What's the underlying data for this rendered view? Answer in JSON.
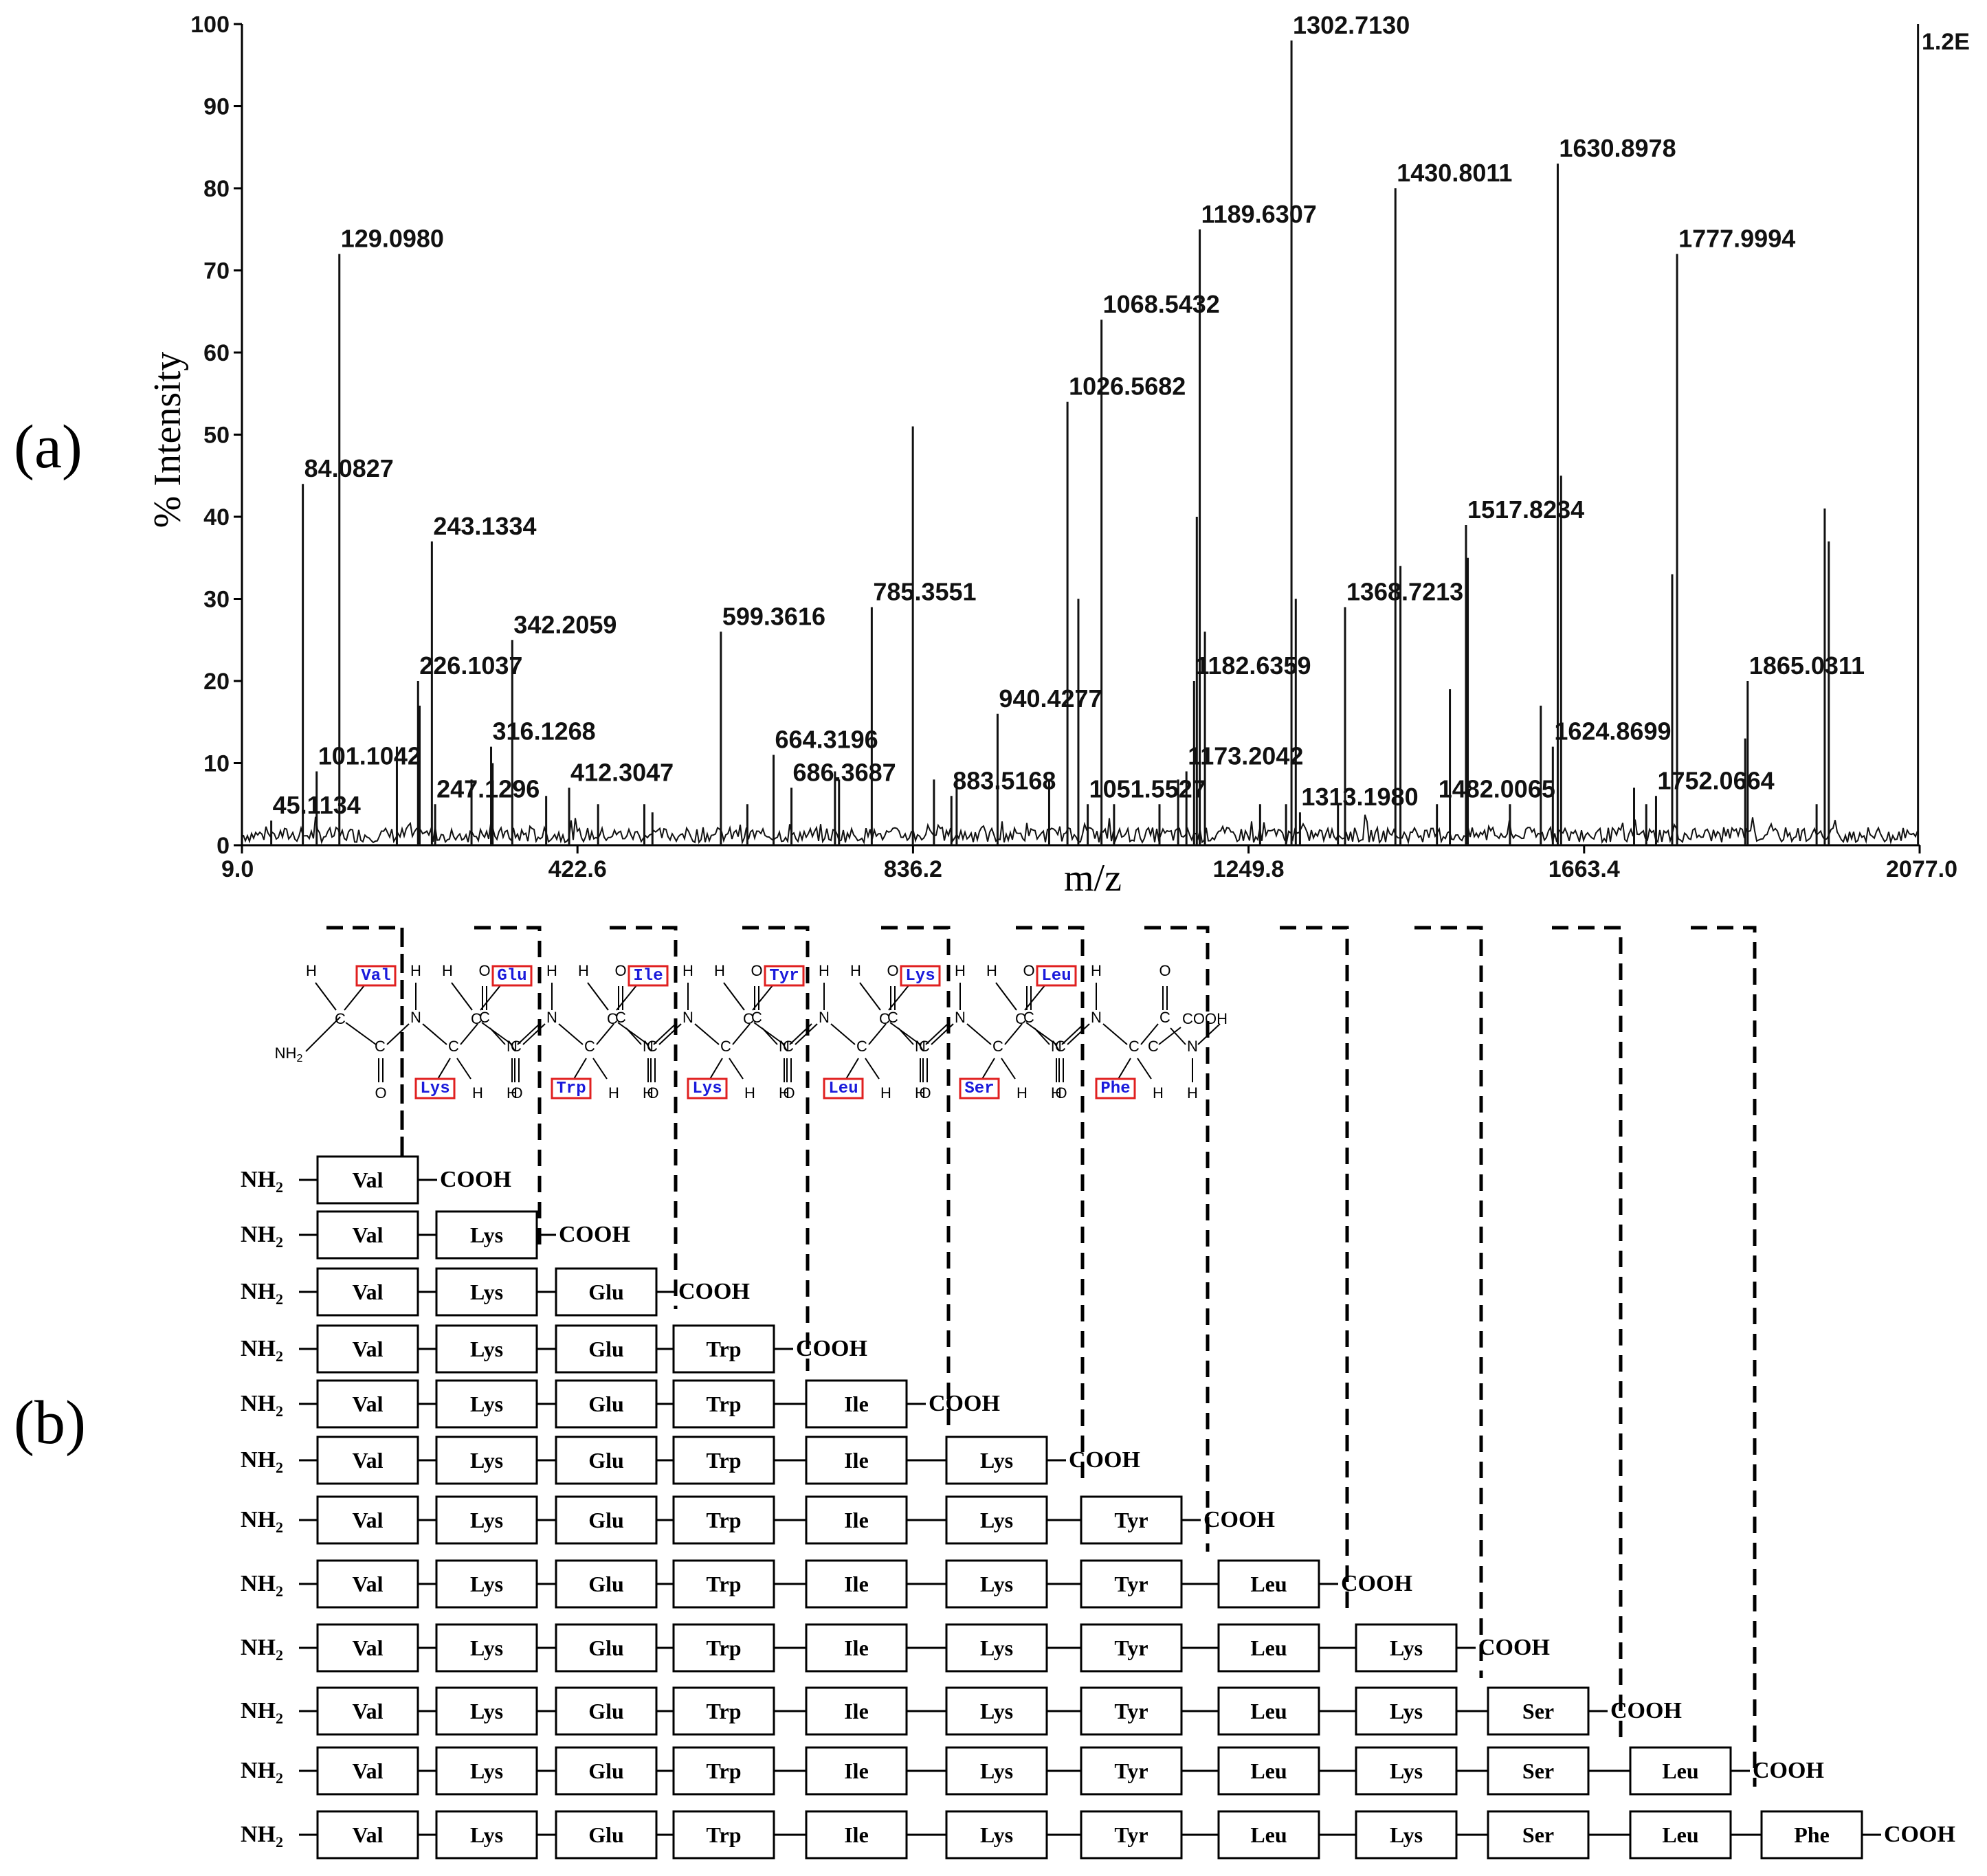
{
  "panels": {
    "a": "(a)",
    "b": "(b)"
  },
  "chart_data": {
    "type": "bar",
    "title": "",
    "xlabel": "m/z",
    "ylabel": "% Intensity",
    "xlim": [
      9.0,
      2077.0
    ],
    "ylim": [
      0,
      100
    ],
    "x_ticks": [
      "9.0",
      "422.6",
      "836.2",
      "1249.8",
      "1663.4",
      "2077.0"
    ],
    "y_ticks": [
      "0",
      "10",
      "20",
      "30",
      "40",
      "50",
      "60",
      "70",
      "80",
      "90",
      "100"
    ],
    "corner_label": "1.2E",
    "peaks_labeled": [
      {
        "mz": 45.1134,
        "label": "45.1134",
        "y": 3
      },
      {
        "mz": 84.0827,
        "label": "84.0827",
        "y": 44
      },
      {
        "mz": 101.1042,
        "label": "101.1042",
        "y": 9
      },
      {
        "mz": 129.098,
        "label": "129.0980",
        "y": 72
      },
      {
        "mz": 226.1037,
        "label": "226.1037",
        "y": 20
      },
      {
        "mz": 243.1334,
        "label": "243.1334",
        "y": 37
      },
      {
        "mz": 247.1296,
        "label": "247.1296",
        "y": 5
      },
      {
        "mz": 316.1268,
        "label": "316.1268",
        "y": 12
      },
      {
        "mz": 342.2059,
        "label": "342.2059",
        "y": 25
      },
      {
        "mz": 412.3047,
        "label": "412.3047",
        "y": 7
      },
      {
        "mz": 599.3616,
        "label": "599.3616",
        "y": 26
      },
      {
        "mz": 664.3196,
        "label": "664.3196",
        "y": 11
      },
      {
        "mz": 686.3687,
        "label": "686.3687",
        "y": 7
      },
      {
        "mz": 785.3551,
        "label": "785.3551",
        "y": 29
      },
      {
        "mz": 883.5168,
        "label": "883.5168",
        "y": 6
      },
      {
        "mz": 940.4277,
        "label": "940.4277",
        "y": 16
      },
      {
        "mz": 1026.5682,
        "label": "1026.5682",
        "y": 54
      },
      {
        "mz": 1051.5527,
        "label": "1051.5527",
        "y": 5
      },
      {
        "mz": 1068.5432,
        "label": "1068.5432",
        "y": 64
      },
      {
        "mz": 1173.2042,
        "label": "1173.2042",
        "y": 9
      },
      {
        "mz": 1182.6359,
        "label": "1182.6359",
        "y": 20
      },
      {
        "mz": 1189.6307,
        "label": "1189.6307",
        "y": 75
      },
      {
        "mz": 1302.713,
        "label": "1302.7130",
        "y": 98
      },
      {
        "mz": 1313.198,
        "label": "1313.1980",
        "y": 4
      },
      {
        "mz": 1368.7213,
        "label": "1368.7213",
        "y": 29
      },
      {
        "mz": 1430.8011,
        "label": "1430.8011",
        "y": 80
      },
      {
        "mz": 1482.0065,
        "label": "1482.0065",
        "y": 5
      },
      {
        "mz": 1517.8234,
        "label": "1517.8234",
        "y": 39
      },
      {
        "mz": 1624.8699,
        "label": "1624.8699",
        "y": 12
      },
      {
        "mz": 1630.8978,
        "label": "1630.8978",
        "y": 83
      },
      {
        "mz": 1752.0664,
        "label": "1752.0664",
        "y": 6
      },
      {
        "mz": 1777.9994,
        "label": "1777.9994",
        "y": 72
      },
      {
        "mz": 1865.0311,
        "label": "1865.0311",
        "y": 20
      }
    ],
    "peaks_other": [
      {
        "mz": 200,
        "y": 12
      },
      {
        "mz": 228,
        "y": 17
      },
      {
        "mz": 292,
        "y": 8
      },
      {
        "mz": 318,
        "y": 10
      },
      {
        "mz": 384,
        "y": 6
      },
      {
        "mz": 448,
        "y": 5
      },
      {
        "mz": 505,
        "y": 5
      },
      {
        "mz": 515,
        "y": 4
      },
      {
        "mz": 632,
        "y": 5
      },
      {
        "mz": 740,
        "y": 9
      },
      {
        "mz": 745,
        "y": 8
      },
      {
        "mz": 836,
        "y": 51
      },
      {
        "mz": 862,
        "y": 8
      },
      {
        "mz": 890,
        "y": 8
      },
      {
        "mz": 1004,
        "y": 8
      },
      {
        "mz": 1040,
        "y": 30
      },
      {
        "mz": 1084,
        "y": 5
      },
      {
        "mz": 1140,
        "y": 5
      },
      {
        "mz": 1163,
        "y": 8
      },
      {
        "mz": 1186,
        "y": 40
      },
      {
        "mz": 1196,
        "y": 26
      },
      {
        "mz": 1264,
        "y": 5
      },
      {
        "mz": 1296,
        "y": 5
      },
      {
        "mz": 1308,
        "y": 30
      },
      {
        "mz": 1360,
        "y": 5
      },
      {
        "mz": 1437,
        "y": 34
      },
      {
        "mz": 1498,
        "y": 19
      },
      {
        "mz": 1520,
        "y": 35
      },
      {
        "mz": 1572,
        "y": 5
      },
      {
        "mz": 1610,
        "y": 17
      },
      {
        "mz": 1635,
        "y": 45
      },
      {
        "mz": 1725,
        "y": 7
      },
      {
        "mz": 1740,
        "y": 5
      },
      {
        "mz": 1772,
        "y": 33
      },
      {
        "mz": 1862,
        "y": 13
      },
      {
        "mz": 1950,
        "y": 5
      },
      {
        "mz": 1960,
        "y": 41
      },
      {
        "mz": 1965,
        "y": 37
      },
      {
        "mz": 2075,
        "y": 100
      }
    ]
  },
  "peptide": {
    "top_residues": [
      "Val",
      "Glu",
      "Ile",
      "Tyr",
      "Lys",
      "Leu"
    ],
    "bottom_residues": [
      "Lys",
      "Trp",
      "Lys",
      "Leu",
      "Ser",
      "Phe"
    ],
    "atoms": {
      "H": "H",
      "N": "N",
      "O": "O",
      "C": "C",
      "NH2": "NH",
      "sub2": "2",
      "COOH": "COOH"
    }
  },
  "fragments": {
    "n_term": "NH",
    "n_sub": "2",
    "c_term": "COOH",
    "sequence": [
      "Val",
      "Lys",
      "Glu",
      "Trp",
      "Ile",
      "Lys",
      "Tyr",
      "Leu",
      "Lys",
      "Ser",
      "Leu",
      "Phe"
    ]
  }
}
